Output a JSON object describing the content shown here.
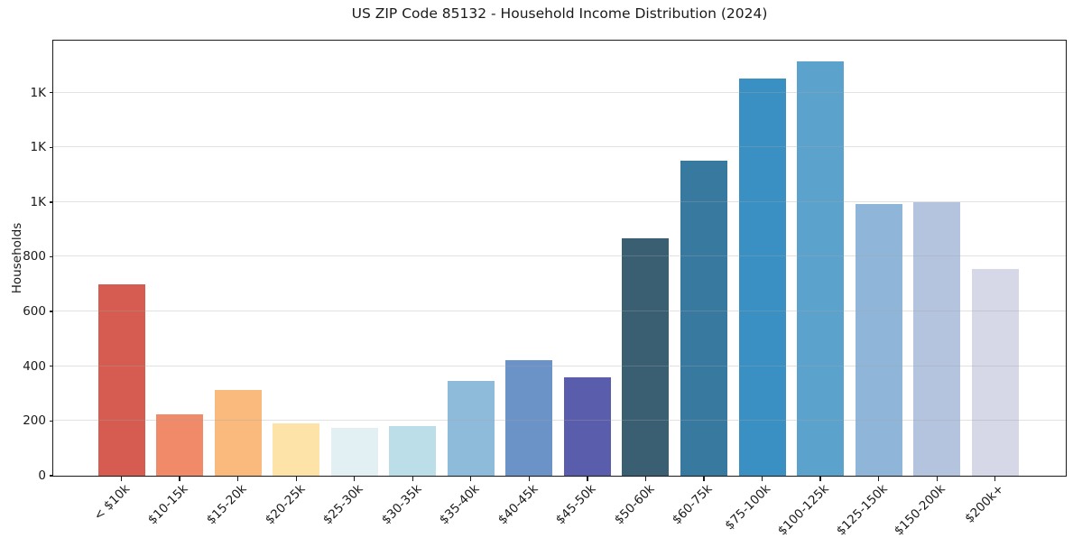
{
  "chart_data": {
    "type": "bar",
    "title": "US ZIP Code 85132 - Household Income Distribution (2024)",
    "xlabel": "",
    "ylabel": "Households",
    "categories": [
      "< $10k",
      "$10-15k",
      "$15-20k",
      "$20-25k",
      "$25-30k",
      "$30-35k",
      "$35-40k",
      "$40-45k",
      "$45-50k",
      "$50-60k",
      "$60-75k",
      "$75-100k",
      "$100-125k",
      "$125-150k",
      "$150-200k",
      "$200k+"
    ],
    "values": [
      700,
      223,
      315,
      190,
      175,
      182,
      347,
      423,
      360,
      866,
      1150,
      1450,
      1514,
      992,
      1000,
      757
    ],
    "bar_colors": [
      "#d65b51",
      "#f08a68",
      "#fab97d",
      "#fde3a8",
      "#e3f0f3",
      "#bbdee9",
      "#8fbbdb",
      "#6b93c8",
      "#5a5dac",
      "#3a5f73",
      "#38799f",
      "#3a90c2",
      "#5ba3cd",
      "#8fb6d9",
      "#b5c4de",
      "#d6d7e7"
    ],
    "ylim": [
      0,
      1590
    ],
    "yticks": {
      "values": [
        0,
        200,
        400,
        600,
        800,
        1000,
        1200,
        1400
      ],
      "labels": [
        "0",
        "200",
        "400",
        "600",
        "800",
        "1K",
        "1K",
        "1K"
      ]
    },
    "grid": "horizontal-only, light gray, drawn above bars",
    "legend": "none",
    "bar_width_fraction": 0.8,
    "colors": {
      "background": "#ffffff",
      "spine": "#1a1a1a",
      "text": "#1a1a1a",
      "grid": "#e9e7e7"
    }
  }
}
